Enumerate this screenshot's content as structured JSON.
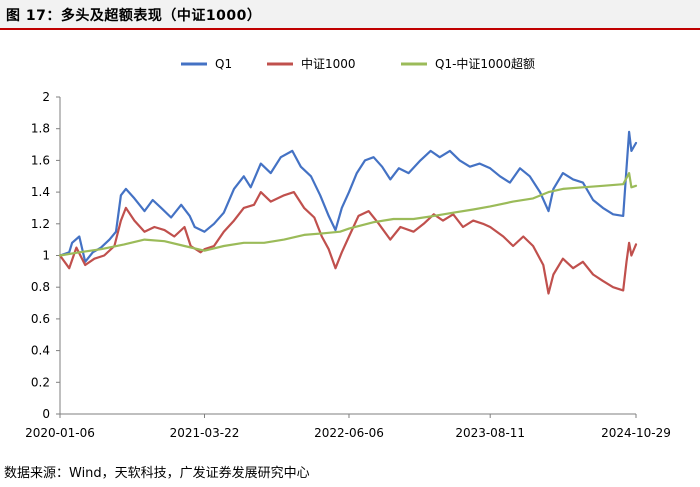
{
  "header": {
    "title": "图 17：多头及超额表现（中证1000）"
  },
  "footer": {
    "source": "数据来源：Wind，天软科技，广发证券发展研究中心"
  },
  "chart_data": {
    "type": "line",
    "title": "",
    "xlabel": "",
    "ylabel": "",
    "ylim": [
      0,
      2
    ],
    "yticks": [
      0,
      0.2,
      0.4,
      0.6,
      0.8,
      1,
      1.2,
      1.4,
      1.6,
      1.8,
      2
    ],
    "xlim": [
      "2020-01-06",
      "2024-10-29"
    ],
    "xticks": [
      "2020-01-06",
      "2021-03-22",
      "2022-06-06",
      "2023-08-11",
      "2024-10-29"
    ],
    "grid": false,
    "legend_position": "top-center",
    "series": [
      {
        "name": "Q1",
        "color": "#4472c4",
        "points": [
          [
            "2020-01-06",
            1.0
          ],
          [
            "2020-02-03",
            1.02
          ],
          [
            "2020-02-12",
            1.08
          ],
          [
            "2020-03-05",
            1.12
          ],
          [
            "2020-03-23",
            0.96
          ],
          [
            "2020-04-15",
            1.02
          ],
          [
            "2020-05-10",
            1.05
          ],
          [
            "2020-06-05",
            1.1
          ],
          [
            "2020-06-25",
            1.15
          ],
          [
            "2020-07-10",
            1.38
          ],
          [
            "2020-07-25",
            1.42
          ],
          [
            "2020-08-20",
            1.36
          ],
          [
            "2020-09-20",
            1.28
          ],
          [
            "2020-10-15",
            1.35
          ],
          [
            "2020-11-10",
            1.3
          ],
          [
            "2020-12-10",
            1.24
          ],
          [
            "2021-01-10",
            1.32
          ],
          [
            "2021-02-05",
            1.25
          ],
          [
            "2021-02-20",
            1.18
          ],
          [
            "2021-03-22",
            1.15
          ],
          [
            "2021-04-20",
            1.2
          ],
          [
            "2021-05-20",
            1.27
          ],
          [
            "2021-06-20",
            1.42
          ],
          [
            "2021-07-20",
            1.5
          ],
          [
            "2021-08-10",
            1.43
          ],
          [
            "2021-09-10",
            1.58
          ],
          [
            "2021-10-10",
            1.52
          ],
          [
            "2021-11-10",
            1.62
          ],
          [
            "2021-12-15",
            1.66
          ],
          [
            "2022-01-10",
            1.56
          ],
          [
            "2022-02-10",
            1.5
          ],
          [
            "2022-03-10",
            1.38
          ],
          [
            "2022-04-05",
            1.25
          ],
          [
            "2022-04-26",
            1.16
          ],
          [
            "2022-05-15",
            1.3
          ],
          [
            "2022-06-06",
            1.4
          ],
          [
            "2022-06-30",
            1.52
          ],
          [
            "2022-07-25",
            1.6
          ],
          [
            "2022-08-20",
            1.62
          ],
          [
            "2022-09-15",
            1.56
          ],
          [
            "2022-10-10",
            1.48
          ],
          [
            "2022-11-05",
            1.55
          ],
          [
            "2022-12-05",
            1.52
          ],
          [
            "2023-01-10",
            1.6
          ],
          [
            "2023-02-10",
            1.66
          ],
          [
            "2023-03-10",
            1.62
          ],
          [
            "2023-04-10",
            1.66
          ],
          [
            "2023-05-10",
            1.6
          ],
          [
            "2023-06-10",
            1.56
          ],
          [
            "2023-07-10",
            1.58
          ],
          [
            "2023-08-11",
            1.55
          ],
          [
            "2023-09-10",
            1.5
          ],
          [
            "2023-10-10",
            1.46
          ],
          [
            "2023-11-10",
            1.55
          ],
          [
            "2023-12-10",
            1.5
          ],
          [
            "2024-01-10",
            1.4
          ],
          [
            "2024-02-05",
            1.28
          ],
          [
            "2024-02-20",
            1.42
          ],
          [
            "2024-03-20",
            1.52
          ],
          [
            "2024-04-20",
            1.48
          ],
          [
            "2024-05-20",
            1.46
          ],
          [
            "2024-06-20",
            1.35
          ],
          [
            "2024-07-20",
            1.3
          ],
          [
            "2024-08-20",
            1.26
          ],
          [
            "2024-09-20",
            1.25
          ],
          [
            "2024-09-30",
            1.55
          ],
          [
            "2024-10-08",
            1.78
          ],
          [
            "2024-10-15",
            1.66
          ],
          [
            "2024-10-29",
            1.71
          ]
        ]
      },
      {
        "name": "中证1000",
        "color": "#c0504d",
        "points": [
          [
            "2020-01-06",
            1.0
          ],
          [
            "2020-02-03",
            0.92
          ],
          [
            "2020-02-25",
            1.05
          ],
          [
            "2020-03-23",
            0.94
          ],
          [
            "2020-04-20",
            0.98
          ],
          [
            "2020-05-20",
            1.0
          ],
          [
            "2020-06-20",
            1.06
          ],
          [
            "2020-07-10",
            1.22
          ],
          [
            "2020-07-25",
            1.3
          ],
          [
            "2020-08-20",
            1.22
          ],
          [
            "2020-09-20",
            1.15
          ],
          [
            "2020-10-20",
            1.18
          ],
          [
            "2020-11-20",
            1.16
          ],
          [
            "2020-12-20",
            1.12
          ],
          [
            "2021-01-20",
            1.18
          ],
          [
            "2021-02-08",
            1.06
          ],
          [
            "2021-03-10",
            1.02
          ],
          [
            "2021-03-22",
            1.04
          ],
          [
            "2021-04-20",
            1.06
          ],
          [
            "2021-05-20",
            1.15
          ],
          [
            "2021-06-20",
            1.22
          ],
          [
            "2021-07-20",
            1.3
          ],
          [
            "2021-08-20",
            1.32
          ],
          [
            "2021-09-10",
            1.4
          ],
          [
            "2021-10-10",
            1.34
          ],
          [
            "2021-11-20",
            1.38
          ],
          [
            "2021-12-20",
            1.4
          ],
          [
            "2022-01-20",
            1.3
          ],
          [
            "2022-02-20",
            1.24
          ],
          [
            "2022-03-15",
            1.12
          ],
          [
            "2022-04-05",
            1.04
          ],
          [
            "2022-04-26",
            0.92
          ],
          [
            "2022-05-15",
            1.02
          ],
          [
            "2022-06-06",
            1.12
          ],
          [
            "2022-07-05",
            1.25
          ],
          [
            "2022-08-05",
            1.28
          ],
          [
            "2022-09-05",
            1.2
          ],
          [
            "2022-10-10",
            1.1
          ],
          [
            "2022-11-10",
            1.18
          ],
          [
            "2022-12-20",
            1.15
          ],
          [
            "2023-01-20",
            1.2
          ],
          [
            "2023-02-20",
            1.26
          ],
          [
            "2023-03-20",
            1.22
          ],
          [
            "2023-04-20",
            1.26
          ],
          [
            "2023-05-20",
            1.18
          ],
          [
            "2023-06-20",
            1.22
          ],
          [
            "2023-07-20",
            1.2
          ],
          [
            "2023-08-11",
            1.18
          ],
          [
            "2023-09-20",
            1.12
          ],
          [
            "2023-10-20",
            1.06
          ],
          [
            "2023-11-20",
            1.12
          ],
          [
            "2023-12-20",
            1.06
          ],
          [
            "2024-01-20",
            0.94
          ],
          [
            "2024-02-05",
            0.76
          ],
          [
            "2024-02-20",
            0.88
          ],
          [
            "2024-03-20",
            0.98
          ],
          [
            "2024-04-20",
            0.92
          ],
          [
            "2024-05-20",
            0.96
          ],
          [
            "2024-06-20",
            0.88
          ],
          [
            "2024-07-20",
            0.84
          ],
          [
            "2024-08-20",
            0.8
          ],
          [
            "2024-09-20",
            0.78
          ],
          [
            "2024-09-30",
            0.96
          ],
          [
            "2024-10-08",
            1.08
          ],
          [
            "2024-10-15",
            1.0
          ],
          [
            "2024-10-29",
            1.07
          ]
        ]
      },
      {
        "name": "Q1-中证1000超额",
        "color": "#9bbb59",
        "points": [
          [
            "2020-01-06",
            1.0
          ],
          [
            "2020-03-05",
            1.02
          ],
          [
            "2020-05-10",
            1.04
          ],
          [
            "2020-07-20",
            1.07
          ],
          [
            "2020-09-20",
            1.1
          ],
          [
            "2020-11-20",
            1.09
          ],
          [
            "2021-01-20",
            1.06
          ],
          [
            "2021-03-22",
            1.03
          ],
          [
            "2021-05-20",
            1.06
          ],
          [
            "2021-07-20",
            1.08
          ],
          [
            "2021-09-20",
            1.08
          ],
          [
            "2021-11-20",
            1.1
          ],
          [
            "2022-01-20",
            1.13
          ],
          [
            "2022-03-20",
            1.14
          ],
          [
            "2022-05-10",
            1.15
          ],
          [
            "2022-06-06",
            1.17
          ],
          [
            "2022-08-20",
            1.21
          ],
          [
            "2022-10-20",
            1.23
          ],
          [
            "2022-12-20",
            1.23
          ],
          [
            "2023-02-20",
            1.25
          ],
          [
            "2023-04-20",
            1.27
          ],
          [
            "2023-06-20",
            1.29
          ],
          [
            "2023-08-11",
            1.31
          ],
          [
            "2023-10-20",
            1.34
          ],
          [
            "2023-12-20",
            1.36
          ],
          [
            "2024-02-05",
            1.4
          ],
          [
            "2024-03-20",
            1.42
          ],
          [
            "2024-05-20",
            1.43
          ],
          [
            "2024-07-20",
            1.44
          ],
          [
            "2024-09-20",
            1.45
          ],
          [
            "2024-10-08",
            1.52
          ],
          [
            "2024-10-15",
            1.43
          ],
          [
            "2024-10-29",
            1.44
          ]
        ]
      }
    ]
  }
}
